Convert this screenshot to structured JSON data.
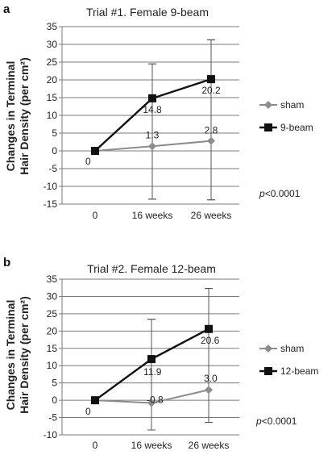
{
  "panels": [
    {
      "letter": "a",
      "pvalue": {
        "p": "p",
        "rest": "<0.0001"
      },
      "chart_data": {
        "type": "line",
        "title": "Trial #1. Female 9-beam",
        "ylabel": [
          "Changes in Terminal",
          "Hair Density (per cm²)"
        ],
        "xlabel": "",
        "categories": [
          "0",
          "16 weeks",
          "26 weeks"
        ],
        "ylim": [
          -15,
          35
        ],
        "yticks": [
          "-15",
          "-10",
          "-5",
          "0",
          "5",
          "10",
          "15",
          "20",
          "25",
          "30",
          "35"
        ],
        "grid": true,
        "legend_position": "right",
        "series": [
          {
            "name": "sham",
            "marker": "diamond",
            "color": "#8c8c8c",
            "width": 2,
            "values": [
              0,
              1.3,
              2.8
            ],
            "labels": [
              "0",
              "1.3",
              "2.8"
            ],
            "errors": [
              [
                0,
                0
              ],
              [
                -13.6,
                24.5
              ],
              [
                -13.8,
                31.3
              ]
            ]
          },
          {
            "name": "9-beam",
            "marker": "square",
            "color": "#111111",
            "width": 2.4,
            "values": [
              0,
              14.8,
              20.2
            ],
            "labels": [
              "",
              "14.8",
              "20.2"
            ],
            "errors": [
              [
                0,
                0
              ],
              [
                -13.6,
                24.5
              ],
              [
                -13.8,
                31.3
              ]
            ]
          }
        ]
      }
    },
    {
      "letter": "b",
      "pvalue": {
        "p": "p",
        "rest": "<0.0001"
      },
      "chart_data": {
        "type": "line",
        "title": "Trial #2. Female 12-beam",
        "ylabel": [
          "Changes in Terminal",
          "Hair Density (per cm²)"
        ],
        "xlabel": "",
        "categories": [
          "0",
          "16 weeks",
          "26 weeks"
        ],
        "ylim": [
          -10,
          35
        ],
        "yticks": [
          "-10",
          "-5",
          "0",
          "5",
          "10",
          "15",
          "20",
          "25",
          "30",
          "35"
        ],
        "grid": true,
        "legend_position": "right",
        "series": [
          {
            "name": "sham",
            "marker": "diamond",
            "color": "#8c8c8c",
            "width": 2,
            "values": [
              0,
              -0.8,
              3.0
            ],
            "labels": [
              "0",
              "-0.8",
              "3.0"
            ],
            "errors": [
              [
                0,
                0
              ],
              [
                -8.6,
                23.4
              ],
              [
                -6.4,
                32.3
              ]
            ]
          },
          {
            "name": "12-beam",
            "marker": "square",
            "color": "#111111",
            "width": 2.4,
            "values": [
              0,
              11.9,
              20.6
            ],
            "labels": [
              "",
              "11.9",
              "20.6"
            ],
            "errors": [
              [
                0,
                0
              ],
              [
                -8.6,
                23.4
              ],
              [
                -6.4,
                32.3
              ]
            ]
          }
        ]
      }
    }
  ]
}
